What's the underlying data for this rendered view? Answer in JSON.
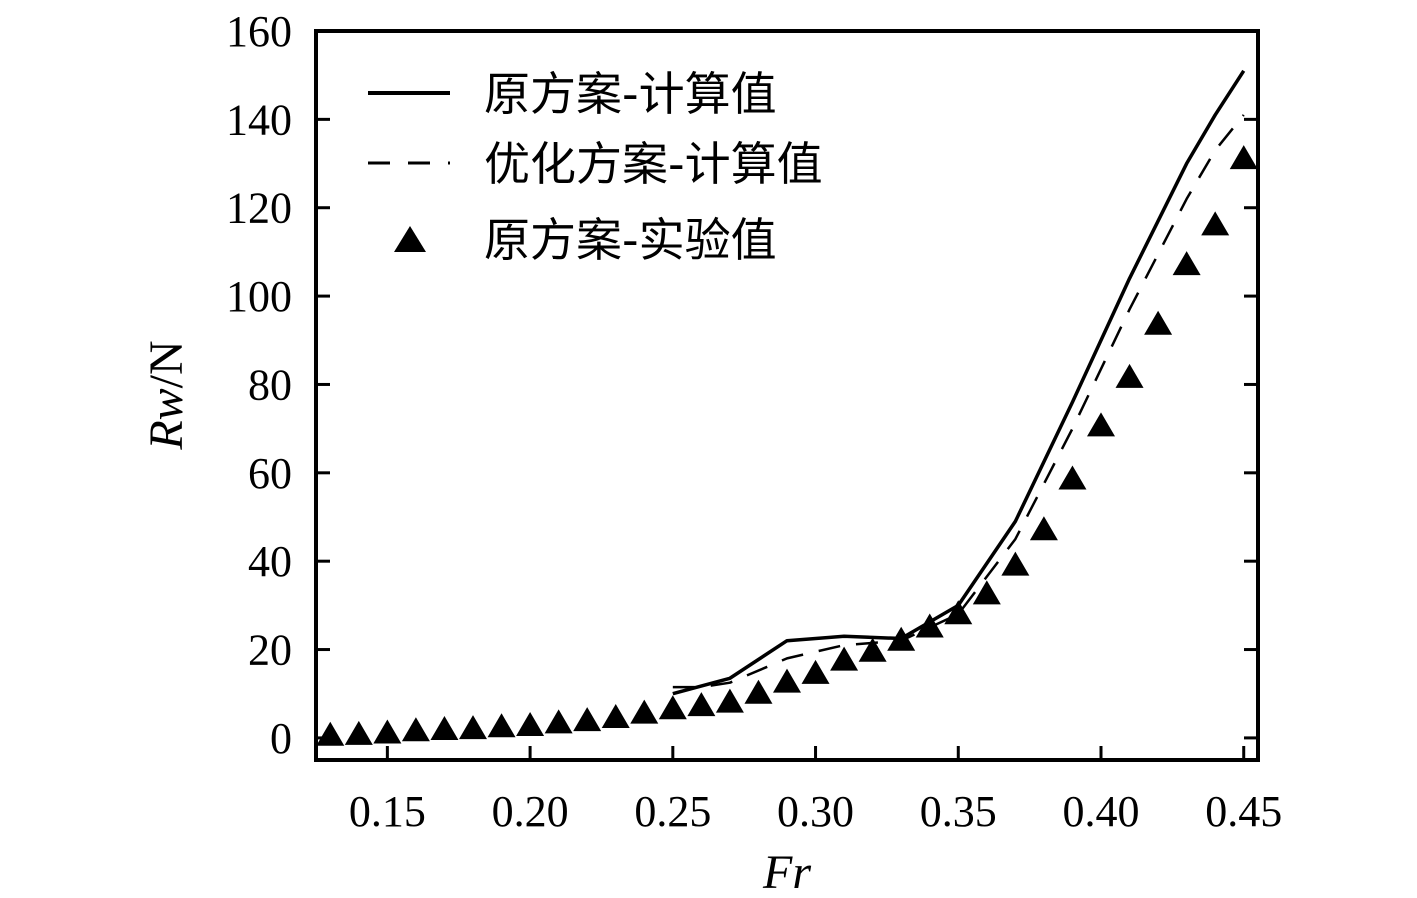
{
  "chart_data": {
    "type": "line",
    "xlabel": "Fr",
    "ylabel_italic": "Rw",
    "ylabel_unit": "/N",
    "xlim": [
      0.125,
      0.455
    ],
    "ylim": [
      -5,
      160
    ],
    "xticks": [
      0.15,
      0.2,
      0.25,
      0.3,
      0.35,
      0.4,
      0.45
    ],
    "xtick_labels": [
      "0.15",
      "0.20",
      "0.25",
      "0.30",
      "0.35",
      "0.40",
      "0.45"
    ],
    "yticks": [
      0,
      20,
      40,
      60,
      80,
      100,
      120,
      140,
      160
    ],
    "ytick_labels": [
      "0",
      "20",
      "40",
      "60",
      "80",
      "100",
      "120",
      "140",
      "160"
    ],
    "legend_position": "top-left",
    "grid": false,
    "series": [
      {
        "name": "原方案-计算值",
        "style": "solid",
        "x": [
          0.25,
          0.27,
          0.29,
          0.31,
          0.33,
          0.35,
          0.37,
          0.39,
          0.41,
          0.43,
          0.44,
          0.45
        ],
        "y": [
          10,
          13.5,
          22,
          23,
          22.5,
          30,
          49,
          76,
          104,
          130,
          141,
          151
        ]
      },
      {
        "name": "优化方案-计算值",
        "style": "dashed",
        "x": [
          0.25,
          0.26,
          0.27,
          0.29,
          0.31,
          0.33,
          0.35,
          0.37,
          0.39,
          0.41,
          0.43,
          0.44,
          0.45
        ],
        "y": [
          11.5,
          11.5,
          12.5,
          18,
          21,
          22,
          28,
          45,
          70,
          97,
          122,
          133,
          141
        ]
      },
      {
        "name": "原方案-实验值",
        "style": "marker-triangle",
        "x": [
          0.13,
          0.14,
          0.15,
          0.16,
          0.17,
          0.18,
          0.19,
          0.2,
          0.21,
          0.22,
          0.23,
          0.24,
          0.25,
          0.26,
          0.27,
          0.28,
          0.29,
          0.3,
          0.31,
          0.32,
          0.33,
          0.34,
          0.35,
          0.36,
          0.37,
          0.38,
          0.39,
          0.4,
          0.41,
          0.42,
          0.43,
          0.44,
          0.45
        ],
        "y": [
          0.5,
          0.7,
          1.0,
          1.5,
          1.8,
          2.0,
          2.4,
          2.7,
          3.3,
          3.8,
          4.5,
          5.5,
          6.5,
          7.2,
          8.0,
          10.0,
          12.5,
          14.5,
          17.5,
          19.5,
          22.0,
          25.0,
          28.0,
          32.5,
          39.0,
          47.0,
          58.5,
          70.5,
          81.5,
          93.5,
          107,
          116,
          131
        ]
      }
    ]
  }
}
